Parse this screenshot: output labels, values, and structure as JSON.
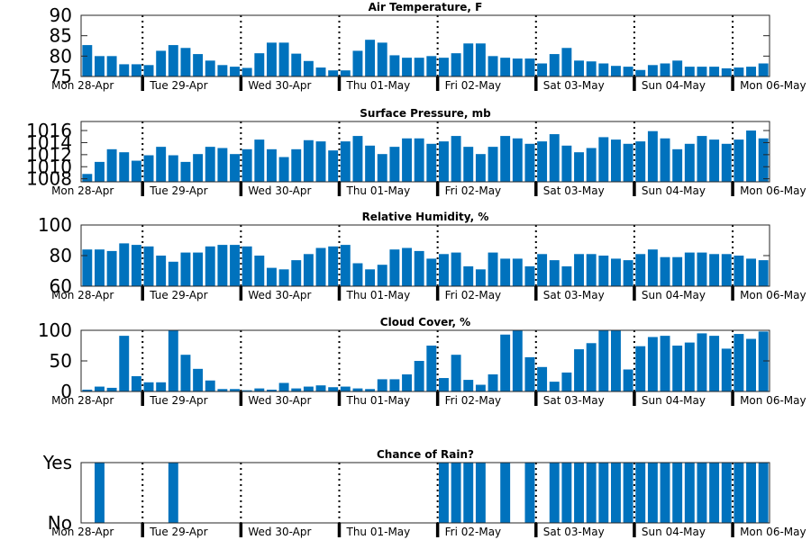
{
  "chart_data": [
    {
      "type": "bar",
      "title": "Air Temperature, F",
      "ylim": [
        75,
        90
      ],
      "yticks": [
        "75",
        "80",
        "85",
        "90"
      ],
      "color": "#0072BD",
      "day_labels": [
        "Mon 28-Apr",
        "Tue 29-Apr",
        "Wed 30-Apr",
        "Thu 01-May",
        "Fri 02-May",
        "Sat 03-May",
        "Sun 04-May",
        "Mon 06-May"
      ],
      "values": [
        82.7,
        80.0,
        80.0,
        78.0,
        78.0,
        77.8,
        81.3,
        82.7,
        82.0,
        80.5,
        78.9,
        77.8,
        77.4,
        77.1,
        80.7,
        83.3,
        83.3,
        80.6,
        78.8,
        77.2,
        76.5,
        76.5,
        81.3,
        84.0,
        83.3,
        80.2,
        79.6,
        79.6,
        80.0,
        79.6,
        80.7,
        83.1,
        83.1,
        80.0,
        79.6,
        79.4,
        79.4,
        78.2,
        80.5,
        82.0,
        78.9,
        78.7,
        78.2,
        77.6,
        77.4,
        76.6,
        77.8,
        78.2,
        78.9,
        77.4,
        77.4,
        77.4,
        77.0,
        77.2,
        77.4,
        78.2
      ]
    },
    {
      "type": "bar",
      "title": "Surface Pressure, mb",
      "ylim": [
        1007.5,
        1017.5
      ],
      "yticks": [
        "1008",
        "1010",
        "1012",
        "1014",
        "1016"
      ],
      "color": "#0072BD",
      "day_labels": [
        "Mon 28-Apr",
        "Tue 29-Apr",
        "Wed 30-Apr",
        "Thu 01-May",
        "Fri 02-May",
        "Sat 03-May",
        "Sun 04-May",
        "Mon 06-May"
      ],
      "values": [
        1008.8,
        1010.8,
        1012.9,
        1012.4,
        1011.0,
        1011.9,
        1013.3,
        1011.9,
        1010.8,
        1012.1,
        1013.3,
        1013.1,
        1012.1,
        1012.9,
        1014.5,
        1012.9,
        1011.6,
        1012.9,
        1014.4,
        1014.2,
        1012.7,
        1014.2,
        1015.1,
        1013.5,
        1012.1,
        1013.3,
        1014.7,
        1014.7,
        1013.8,
        1014.2,
        1015.1,
        1013.3,
        1012.1,
        1013.3,
        1015.1,
        1014.7,
        1013.8,
        1014.2,
        1015.4,
        1013.5,
        1012.4,
        1013.1,
        1014.9,
        1014.5,
        1013.8,
        1014.2,
        1015.9,
        1014.7,
        1012.9,
        1013.8,
        1015.1,
        1014.5,
        1013.8,
        1014.5,
        1016.0,
        1014.7
      ]
    },
    {
      "type": "bar",
      "title": "Relative Humidity, %",
      "ylim": [
        60,
        100
      ],
      "yticks": [
        "60",
        "80",
        "100"
      ],
      "color": "#0072BD",
      "day_labels": [
        "Mon 28-Apr",
        "Tue 29-Apr",
        "Wed 30-Apr",
        "Thu 01-May",
        "Fri 02-May",
        "Sat 03-May",
        "Sun 04-May",
        "Mon 06-May"
      ],
      "values": [
        84,
        84,
        83,
        88,
        87,
        86,
        80,
        76,
        82,
        82,
        86,
        87,
        87,
        86,
        80,
        72,
        71,
        77,
        81,
        85,
        86,
        87,
        75,
        71,
        74,
        84,
        85,
        83,
        78,
        81,
        82,
        73,
        71,
        82,
        78,
        78,
        73,
        81,
        77,
        73,
        81,
        81,
        80,
        78,
        77,
        81,
        84,
        79,
        79,
        82,
        82,
        81,
        81,
        80,
        78,
        77
      ]
    },
    {
      "type": "bar",
      "title": "Cloud Cover, %",
      "ylim": [
        0,
        100
      ],
      "yticks": [
        "0",
        "50",
        "100"
      ],
      "color": "#0072BD",
      "day_labels": [
        "Mon 28-Apr",
        "Tue 29-Apr",
        "Wed 30-Apr",
        "Thu 01-May",
        "Fri 02-May",
        "Sat 03-May",
        "Sun 04-May",
        "Mon 06-May"
      ],
      "values": [
        3,
        8,
        6,
        91,
        25,
        15,
        15,
        100,
        60,
        37,
        18,
        4,
        4,
        2,
        5,
        3,
        14,
        5,
        8,
        10,
        7,
        8,
        5,
        4,
        20,
        20,
        28,
        50,
        75,
        22,
        60,
        19,
        11,
        28,
        93,
        100,
        56,
        40,
        16,
        31,
        69,
        79,
        100,
        100,
        36,
        74,
        89,
        91,
        75,
        80,
        95,
        91,
        70,
        94,
        86,
        98
      ]
    },
    {
      "type": "bar",
      "title": "Chance of Rain?",
      "ylim": [
        0,
        1
      ],
      "yticks": [
        "No",
        "Yes"
      ],
      "color": "#0072BD",
      "day_labels": [
        "Mon 28-Apr",
        "Tue 29-Apr",
        "Wed 30-Apr",
        "Thu 01-May",
        "Fri 02-May",
        "Sat 03-May",
        "Sun 04-May",
        "Mon 06-May"
      ],
      "values": [
        0,
        1,
        0,
        0,
        0,
        0,
        0,
        1,
        0,
        0,
        0,
        0,
        0,
        0,
        0,
        0,
        0,
        0,
        0,
        0,
        0,
        0,
        0,
        0,
        0,
        0,
        0,
        0,
        0,
        1,
        1,
        1,
        1,
        0,
        1,
        0,
        1,
        0,
        1,
        1,
        1,
        1,
        1,
        1,
        1,
        1,
        1,
        1,
        1,
        1,
        1,
        1,
        1,
        1,
        1,
        1
      ]
    }
  ]
}
